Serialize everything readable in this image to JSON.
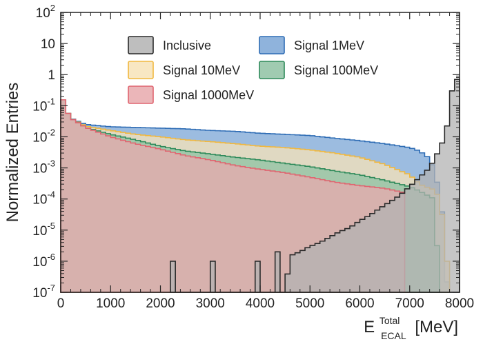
{
  "chart_data": {
    "type": "histogram",
    "title": "",
    "xlabel": {
      "base": "E",
      "superscript": "Total",
      "subscript": "ECAL",
      "unit": "[MeV]"
    },
    "ylabel": "Normalized Entries",
    "xlim": [
      0,
      8000
    ],
    "ylim": [
      1e-07,
      100
    ],
    "yscale": "log",
    "grid": false,
    "legend_position": "top-center",
    "x_ticks": [
      "0",
      "1000",
      "2000",
      "3000",
      "4000",
      "5000",
      "6000",
      "7000",
      "8000"
    ],
    "y_ticks": [
      {
        "base": "10",
        "exp": "-7"
      },
      {
        "base": "10",
        "exp": "-6"
      },
      {
        "base": "10",
        "exp": "-5"
      },
      {
        "base": "10",
        "exp": "-4"
      },
      {
        "base": "10",
        "exp": "-3"
      },
      {
        "base": "10",
        "exp": "-2"
      },
      {
        "base": "10",
        "exp": "-1"
      },
      {
        "base": "1",
        "exp": ""
      },
      {
        "base": "10",
        "exp": ""
      },
      {
        "base": "10",
        "exp": "2"
      }
    ],
    "bin_width": 100,
    "series": [
      {
        "name": "Signal 1MeV",
        "key": "sig1",
        "fill": "#7ba6d6",
        "stroke": "#2f6db5",
        "points": [
          [
            0,
            0.3
          ],
          [
            100,
            0.08
          ],
          [
            200,
            0.04
          ],
          [
            500,
            0.025
          ],
          [
            1000,
            0.021
          ],
          [
            1500,
            0.02
          ],
          [
            2000,
            0.019
          ],
          [
            2500,
            0.018
          ],
          [
            3000,
            0.016
          ],
          [
            3500,
            0.015
          ],
          [
            4000,
            0.013
          ],
          [
            4500,
            0.012
          ],
          [
            5000,
            0.011
          ],
          [
            5500,
            0.009
          ],
          [
            6000,
            0.0075
          ],
          [
            6500,
            0.006
          ],
          [
            7000,
            0.0045
          ],
          [
            7200,
            0.0035
          ],
          [
            7400,
            0.002
          ],
          [
            7500,
            0.0008
          ],
          [
            7600,
            0.00015
          ],
          [
            7700,
            1e-05
          ],
          [
            7760,
            1e-07
          ]
        ]
      },
      {
        "name": "Signal 10MeV",
        "key": "sig10",
        "fill": "#f7e3b8",
        "stroke": "#f0b840",
        "points": [
          [
            0,
            0.3
          ],
          [
            100,
            0.08
          ],
          [
            200,
            0.04
          ],
          [
            500,
            0.022
          ],
          [
            1000,
            0.016
          ],
          [
            1500,
            0.012
          ],
          [
            2000,
            0.01
          ],
          [
            2500,
            0.008
          ],
          [
            3000,
            0.007
          ],
          [
            3500,
            0.006
          ],
          [
            4000,
            0.005
          ],
          [
            4500,
            0.0045
          ],
          [
            5000,
            0.0038
          ],
          [
            5500,
            0.003
          ],
          [
            6000,
            0.0022
          ],
          [
            6500,
            0.0013
          ],
          [
            7000,
            0.0006
          ],
          [
            7200,
            0.0003
          ],
          [
            7400,
            0.00022
          ],
          [
            7500,
            0.0002
          ],
          [
            7600,
            0.0001
          ],
          [
            7700,
            1e-05
          ],
          [
            7800,
            1e-07
          ]
        ]
      },
      {
        "name": "Signal 100MeV",
        "key": "sig100",
        "fill": "#8fc2a3",
        "stroke": "#2e8a5a",
        "points": [
          [
            0,
            0.3
          ],
          [
            100,
            0.08
          ],
          [
            200,
            0.04
          ],
          [
            500,
            0.02
          ],
          [
            1000,
            0.012
          ],
          [
            1500,
            0.008
          ],
          [
            2000,
            0.005
          ],
          [
            2500,
            0.0035
          ],
          [
            3000,
            0.0028
          ],
          [
            3500,
            0.0022
          ],
          [
            4000,
            0.0018
          ],
          [
            4500,
            0.0014
          ],
          [
            5000,
            0.0011
          ],
          [
            5500,
            0.0008
          ],
          [
            6000,
            0.0006
          ],
          [
            6500,
            0.0004
          ],
          [
            7000,
            0.00025
          ],
          [
            7200,
            0.00018
          ],
          [
            7400,
            0.00012
          ],
          [
            7500,
            0.0001
          ],
          [
            7600,
            1e-07
          ]
        ]
      },
      {
        "name": "Signal 1000MeV",
        "key": "sig1000",
        "fill": "#e8a9ad",
        "stroke": "#e06570",
        "points": [
          [
            0,
            0.3
          ],
          [
            100,
            0.08
          ],
          [
            200,
            0.04
          ],
          [
            500,
            0.02
          ],
          [
            1000,
            0.01
          ],
          [
            1500,
            0.006
          ],
          [
            2000,
            0.004
          ],
          [
            2500,
            0.0025
          ],
          [
            3000,
            0.0018
          ],
          [
            3500,
            0.0012
          ],
          [
            4000,
            0.0009
          ],
          [
            4500,
            0.0007
          ],
          [
            5000,
            0.0005
          ],
          [
            5500,
            0.00035
          ],
          [
            6000,
            0.00027
          ],
          [
            6500,
            0.00022
          ],
          [
            6900,
            0.00016
          ],
          [
            6950,
            1e-07
          ]
        ]
      },
      {
        "name": "Inclusive",
        "key": "inclusive",
        "fill": "#b3b3b3",
        "stroke": "#2a2a2a",
        "points": [
          [
            2200,
            1e-07
          ],
          [
            2250,
            1e-06
          ],
          [
            2300,
            1e-07
          ],
          [
            3000,
            1e-07
          ],
          [
            3050,
            1e-06
          ],
          [
            3100,
            1e-07
          ],
          [
            3900,
            1e-07
          ],
          [
            3950,
            1e-06
          ],
          [
            4000,
            1e-07
          ],
          [
            4300,
            1e-07
          ],
          [
            4350,
            2e-06
          ],
          [
            4400,
            1e-07
          ],
          [
            4500,
            1e-07
          ],
          [
            4600,
            1.5e-06
          ],
          [
            4800,
            2e-06
          ],
          [
            5000,
            3e-06
          ],
          [
            5200,
            4e-06
          ],
          [
            5400,
            6e-06
          ],
          [
            5600,
            9e-06
          ],
          [
            5800,
            1.2e-05
          ],
          [
            6000,
            2e-05
          ],
          [
            6200,
            3e-05
          ],
          [
            6400,
            5e-05
          ],
          [
            6600,
            8e-05
          ],
          [
            6800,
            0.00013
          ],
          [
            7000,
            0.00025
          ],
          [
            7200,
            0.0005
          ],
          [
            7400,
            0.001
          ],
          [
            7500,
            0.002
          ],
          [
            7600,
            0.004
          ],
          [
            7700,
            0.01
          ],
          [
            7800,
            0.05
          ],
          [
            7850,
            0.3
          ],
          [
            7900,
            0.7
          ],
          [
            7950,
            0.7
          ],
          [
            8000,
            0.5
          ]
        ]
      }
    ],
    "legend": [
      {
        "label": "Inclusive",
        "series": "inclusive",
        "col": 0,
        "row": 0
      },
      {
        "label": "Signal 1MeV",
        "series": "sig1",
        "col": 1,
        "row": 0
      },
      {
        "label": "Signal 10MeV",
        "series": "sig10",
        "col": 0,
        "row": 1
      },
      {
        "label": "Signal 100MeV",
        "series": "sig100",
        "col": 1,
        "row": 1
      },
      {
        "label": "Signal 1000MeV",
        "series": "sig1000",
        "col": 0,
        "row": 2
      }
    ]
  }
}
